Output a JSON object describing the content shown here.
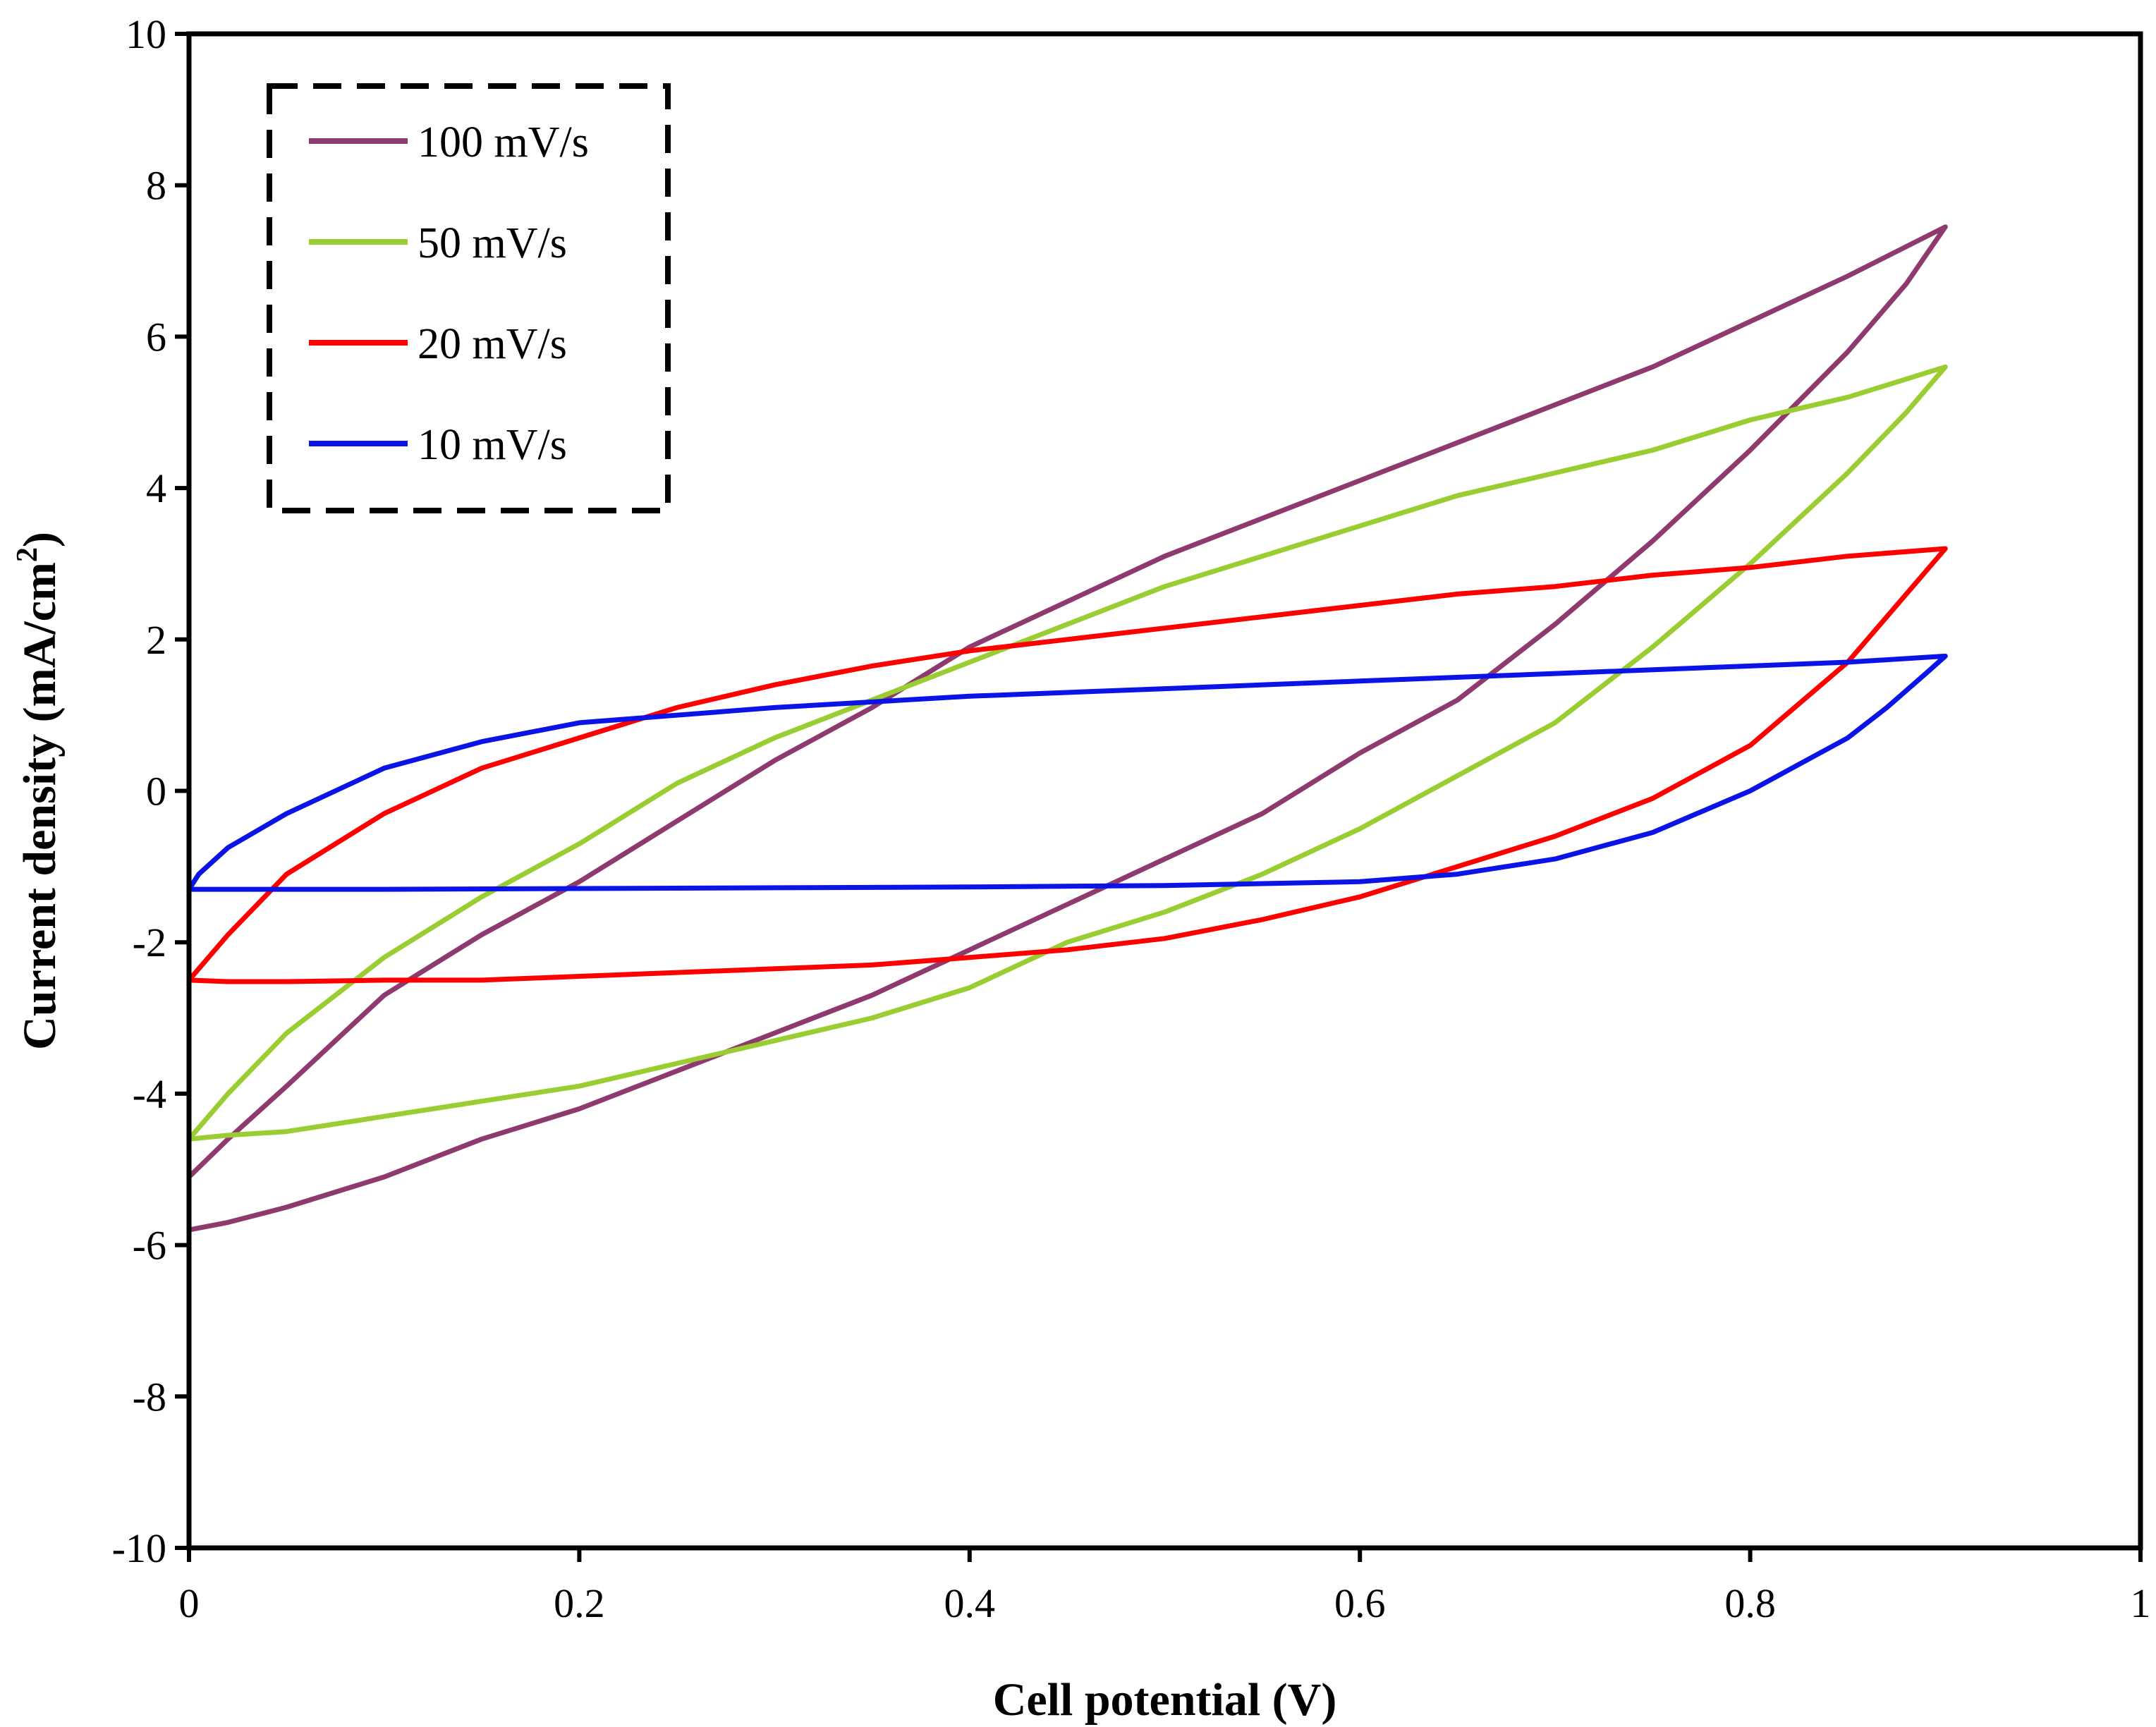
{
  "chart_data": {
    "type": "line",
    "title": "",
    "xlabel": "Cell potential (V)",
    "ylabel_main": "Current density (mA/cm",
    "ylabel_sup": "2",
    "ylabel_close": ")",
    "xlim": [
      0,
      1
    ],
    "ylim": [
      -10,
      10
    ],
    "xticks": [
      0,
      0.2,
      0.4,
      0.6,
      0.8,
      1
    ],
    "xtick_labels": [
      "0",
      "0.2",
      "0.4",
      "0.6",
      "0.8",
      "1"
    ],
    "yticks": [
      -10,
      -8,
      -6,
      -4,
      -2,
      0,
      2,
      4,
      6,
      8,
      10
    ],
    "ytick_labels": [
      "-10",
      "-8",
      "-6",
      "-4",
      "-2",
      "0",
      "2",
      "4",
      "6",
      "8",
      "10"
    ],
    "grid": false,
    "legend_position": "top-left",
    "series": [
      {
        "name": "100 mV/s",
        "color": "#8e3a6e",
        "x": [
          0,
          0.02,
          0.05,
          0.1,
          0.15,
          0.2,
          0.25,
          0.3,
          0.35,
          0.4,
          0.45,
          0.5,
          0.55,
          0.6,
          0.65,
          0.7,
          0.75,
          0.8,
          0.85,
          0.9,
          0.88,
          0.85,
          0.8,
          0.75,
          0.7,
          0.65,
          0.6,
          0.55,
          0.5,
          0.45,
          0.4,
          0.35,
          0.3,
          0.25,
          0.2,
          0.15,
          0.1,
          0.05,
          0.02,
          0,
          0
        ],
        "y": [
          -5.1,
          -4.6,
          -3.9,
          -2.7,
          -1.9,
          -1.2,
          -0.4,
          0.4,
          1.1,
          1.9,
          2.5,
          3.1,
          3.6,
          4.1,
          4.6,
          5.1,
          5.6,
          6.2,
          6.8,
          7.45,
          6.7,
          5.8,
          4.5,
          3.3,
          2.2,
          1.2,
          0.5,
          -0.3,
          -0.9,
          -1.5,
          -2.1,
          -2.7,
          -3.2,
          -3.7,
          -4.2,
          -4.6,
          -5.1,
          -5.5,
          -5.7,
          -5.8,
          -5.1
        ]
      },
      {
        "name": "50 mV/s",
        "color": "#9acd32",
        "x": [
          0,
          0.02,
          0.05,
          0.1,
          0.15,
          0.2,
          0.25,
          0.3,
          0.35,
          0.4,
          0.45,
          0.5,
          0.55,
          0.6,
          0.65,
          0.7,
          0.75,
          0.8,
          0.85,
          0.9,
          0.88,
          0.85,
          0.8,
          0.75,
          0.7,
          0.65,
          0.6,
          0.55,
          0.5,
          0.45,
          0.4,
          0.35,
          0.3,
          0.25,
          0.2,
          0.15,
          0.1,
          0.05,
          0.02,
          0,
          0
        ],
        "y": [
          -4.6,
          -4.0,
          -3.2,
          -2.2,
          -1.4,
          -0.7,
          0.1,
          0.7,
          1.2,
          1.7,
          2.2,
          2.7,
          3.1,
          3.5,
          3.9,
          4.2,
          4.5,
          4.9,
          5.2,
          5.6,
          5.0,
          4.2,
          3.0,
          1.9,
          0.9,
          0.2,
          -0.5,
          -1.1,
          -1.6,
          -2.0,
          -2.6,
          -3.0,
          -3.3,
          -3.6,
          -3.9,
          -4.1,
          -4.3,
          -4.5,
          -4.55,
          -4.6,
          -4.6
        ]
      },
      {
        "name": "20 mV/s",
        "color": "#ff0000",
        "x": [
          0,
          0.02,
          0.05,
          0.1,
          0.15,
          0.2,
          0.25,
          0.3,
          0.35,
          0.4,
          0.45,
          0.5,
          0.55,
          0.6,
          0.65,
          0.7,
          0.75,
          0.8,
          0.85,
          0.9,
          0.88,
          0.85,
          0.8,
          0.75,
          0.7,
          0.65,
          0.6,
          0.55,
          0.5,
          0.45,
          0.4,
          0.35,
          0.3,
          0.25,
          0.2,
          0.15,
          0.1,
          0.05,
          0.02,
          0,
          0
        ],
        "y": [
          -2.5,
          -1.9,
          -1.1,
          -0.3,
          0.3,
          0.7,
          1.1,
          1.4,
          1.65,
          1.85,
          2.0,
          2.15,
          2.3,
          2.45,
          2.6,
          2.7,
          2.85,
          2.95,
          3.1,
          3.2,
          2.6,
          1.7,
          0.6,
          -0.1,
          -0.6,
          -1.0,
          -1.4,
          -1.7,
          -1.95,
          -2.1,
          -2.2,
          -2.3,
          -2.35,
          -2.4,
          -2.45,
          -2.5,
          -2.5,
          -2.52,
          -2.52,
          -2.5,
          -2.5
        ]
      },
      {
        "name": "10 mV/s",
        "color": "#0a14e6",
        "x": [
          0,
          0.005,
          0.02,
          0.05,
          0.1,
          0.15,
          0.2,
          0.3,
          0.4,
          0.5,
          0.6,
          0.7,
          0.8,
          0.85,
          0.9,
          0.89,
          0.87,
          0.85,
          0.8,
          0.75,
          0.7,
          0.65,
          0.6,
          0.5,
          0.4,
          0.3,
          0.2,
          0.1,
          0.05,
          0.02,
          0,
          0
        ],
        "y": [
          -1.3,
          -1.1,
          -0.75,
          -0.3,
          0.3,
          0.65,
          0.9,
          1.1,
          1.25,
          1.35,
          1.45,
          1.55,
          1.65,
          1.7,
          1.78,
          1.55,
          1.1,
          0.7,
          0.0,
          -0.55,
          -0.9,
          -1.1,
          -1.2,
          -1.25,
          -1.27,
          -1.28,
          -1.29,
          -1.3,
          -1.3,
          -1.3,
          -1.3,
          -1.3
        ]
      }
    ]
  }
}
